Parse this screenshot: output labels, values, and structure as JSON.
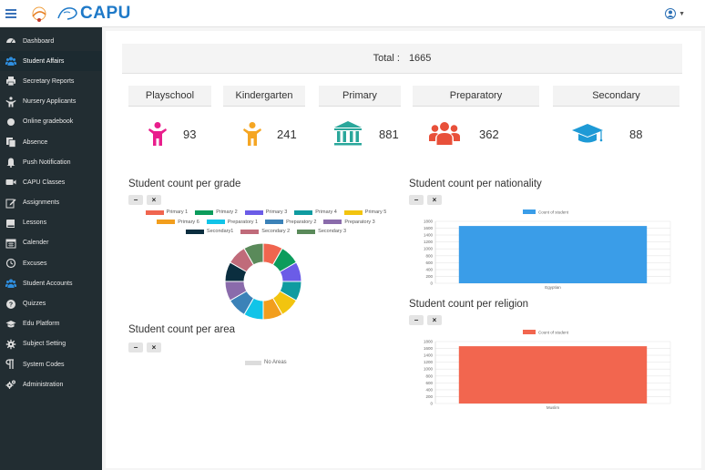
{
  "brand": {
    "name": "CAPU"
  },
  "sidebar": {
    "items": [
      {
        "label": "Dashboard",
        "icon": "dashboard-icon"
      },
      {
        "label": "Student Affairs",
        "icon": "users-icon",
        "active": true
      },
      {
        "label": "Secretary Reports",
        "icon": "printer-icon"
      },
      {
        "label": "Nursery Applicants",
        "icon": "child-icon"
      },
      {
        "label": "Online gradebook",
        "icon": "circle-icon"
      },
      {
        "label": "Absence",
        "icon": "copy-icon"
      },
      {
        "label": "Push Notification",
        "icon": "bell-icon"
      },
      {
        "label": "CAPU Classes",
        "icon": "video-icon"
      },
      {
        "label": "Assignments",
        "icon": "edit-icon"
      },
      {
        "label": "Lessons",
        "icon": "book-icon"
      },
      {
        "label": "Calender",
        "icon": "calendar-icon"
      },
      {
        "label": "Excuses",
        "icon": "clock-icon"
      },
      {
        "label": "Student Accounts",
        "icon": "users-icon"
      },
      {
        "label": "Quizzes",
        "icon": "question-icon"
      },
      {
        "label": "Edu Platform",
        "icon": "graduation-cap-icon"
      },
      {
        "label": "Subject Setting",
        "icon": "gear-icon"
      },
      {
        "label": "System Codes",
        "icon": "paragraph-icon"
      },
      {
        "label": "Administration",
        "icon": "cogs-icon"
      }
    ]
  },
  "total": {
    "label": "Total :",
    "value": "1665"
  },
  "grades": [
    {
      "label": "Playschool",
      "count": "93",
      "icon": "child-icon",
      "color": "#e91e8c"
    },
    {
      "label": "Kindergarten",
      "count": "241",
      "icon": "child-icon",
      "color": "#f5a623"
    },
    {
      "label": "Primary",
      "count": "881",
      "icon": "institution-icon",
      "color": "#2aa79b"
    },
    {
      "label": "Preparatory",
      "count": "362",
      "icon": "users-icon",
      "color": "#e8503a"
    },
    {
      "label": "Secondary",
      "count": "88",
      "icon": "graduation-cap-icon",
      "color": "#1e9ad6"
    }
  ],
  "sections": {
    "per_grade": "Student count per grade",
    "per_area": "Student count per area",
    "per_nationality": "Student count per nationality",
    "per_religion": "Student count per religion"
  },
  "toolbar": {
    "minimize": "−",
    "close": "×"
  },
  "area": {
    "empty_label": "No Areas"
  },
  "chart_data": [
    {
      "type": "pie",
      "donut": true,
      "legend_position": "top",
      "labels": [
        "Primary 1",
        "Primary 2",
        "Primary 3",
        "Primary 4",
        "Primary 5",
        "Primary 6",
        "Preparatory 1",
        "Preparatory 2",
        "Preparatory 3",
        "Secondary1",
        "Secondary 2",
        "Secondary 3"
      ],
      "colors": [
        "#f0654f",
        "#0c9c5c",
        "#6b5ce7",
        "#0f9ba0",
        "#f2c40f",
        "#f29e1d",
        "#11c4e8",
        "#3b82b8",
        "#8a6bab",
        "#0b2e3f",
        "#c06b7a",
        "#5a8a5a"
      ],
      "values": [
        1,
        1,
        1,
        1,
        1,
        1,
        1,
        1,
        1,
        1,
        1,
        1
      ]
    },
    {
      "type": "bar",
      "legend": "Count of student",
      "categories": [
        "Egyptian"
      ],
      "values": [
        1665
      ],
      "ylim": [
        0,
        1800
      ],
      "yticks": [
        "0",
        "200",
        "400",
        "600",
        "800",
        "1000",
        "1200",
        "1400",
        "1600",
        "1800"
      ],
      "color": "#3a9de8",
      "grid": true
    },
    {
      "type": "bar",
      "legend": "Count of student",
      "categories": [
        "Muslim"
      ],
      "values": [
        1665
      ],
      "ylim": [
        0,
        1800
      ],
      "yticks": [
        "0",
        "200",
        "400",
        "600",
        "800",
        "1000",
        "1200",
        "1400",
        "1600",
        "1800"
      ],
      "color": "#f2664f",
      "grid": true
    }
  ]
}
